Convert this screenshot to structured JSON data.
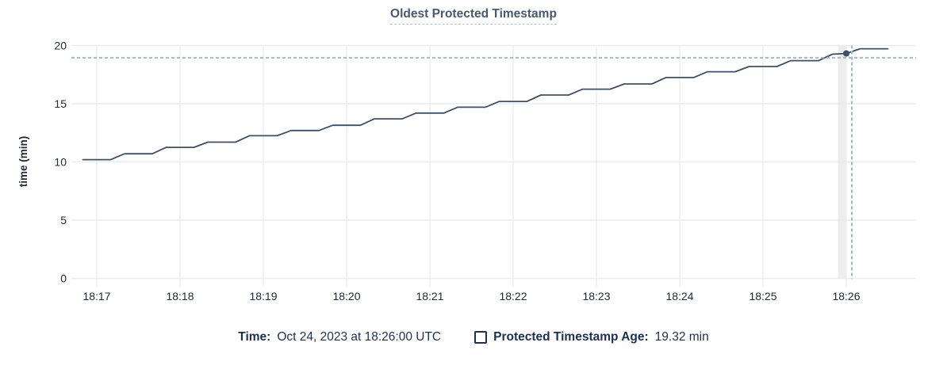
{
  "title": "Oldest Protected Timestamp",
  "legend": {
    "time_label": "Time:",
    "time_value": "Oct 24, 2023 at 18:26:00 UTC",
    "series_label": "Protected Timestamp Age:",
    "series_value": "19.32 min"
  },
  "colors": {
    "title": "#475872",
    "line": "#3f4e6a",
    "legend_text": "#1c2f55",
    "grid": "#ececec",
    "axis_text": "#242a35",
    "crosshair": "#a4b9c5",
    "hover_band": "#ededed",
    "background": "#ffffff"
  },
  "chart_data": {
    "type": "line",
    "title": "Oldest Protected Timestamp",
    "xlabel": "",
    "ylabel": "time (min)",
    "ylim": [
      0,
      20
    ],
    "y_ticks": [
      0,
      5,
      10,
      15,
      20
    ],
    "x_tick_labels": [
      "18:17",
      "18:18",
      "18:19",
      "18:20",
      "18:21",
      "18:22",
      "18:23",
      "18:24",
      "18:25",
      "18:26"
    ],
    "x_tick_interval_seconds": 60,
    "grid": true,
    "legend_position": "bottom",
    "series": [
      {
        "name": "Protected Timestamp Age",
        "unit": "min",
        "style": "stepped-line",
        "points_offset_seconds_vs_18_17": [
          [
            -10,
            10.2
          ],
          [
            0,
            10.2
          ],
          [
            10,
            10.2
          ],
          [
            20,
            10.7
          ],
          [
            30,
            10.7
          ],
          [
            40,
            10.7
          ],
          [
            50,
            11.25
          ],
          [
            60,
            11.25
          ],
          [
            70,
            11.25
          ],
          [
            80,
            11.7
          ],
          [
            90,
            11.7
          ],
          [
            100,
            11.7
          ],
          [
            110,
            12.25
          ],
          [
            120,
            12.25
          ],
          [
            130,
            12.25
          ],
          [
            140,
            12.7
          ],
          [
            150,
            12.7
          ],
          [
            160,
            12.7
          ],
          [
            170,
            13.15
          ],
          [
            180,
            13.15
          ],
          [
            190,
            13.15
          ],
          [
            200,
            13.7
          ],
          [
            210,
            13.7
          ],
          [
            220,
            13.7
          ],
          [
            230,
            14.2
          ],
          [
            240,
            14.2
          ],
          [
            250,
            14.2
          ],
          [
            260,
            14.7
          ],
          [
            270,
            14.7
          ],
          [
            280,
            14.7
          ],
          [
            290,
            15.2
          ],
          [
            300,
            15.2
          ],
          [
            310,
            15.2
          ],
          [
            320,
            15.75
          ],
          [
            330,
            15.75
          ],
          [
            340,
            15.75
          ],
          [
            350,
            16.25
          ],
          [
            360,
            16.25
          ],
          [
            370,
            16.25
          ],
          [
            380,
            16.7
          ],
          [
            390,
            16.7
          ],
          [
            400,
            16.7
          ],
          [
            410,
            17.25
          ],
          [
            420,
            17.25
          ],
          [
            430,
            17.25
          ],
          [
            440,
            17.75
          ],
          [
            450,
            17.75
          ],
          [
            460,
            17.75
          ],
          [
            470,
            18.2
          ],
          [
            480,
            18.2
          ],
          [
            490,
            18.2
          ],
          [
            500,
            18.7
          ],
          [
            510,
            18.7
          ],
          [
            520,
            18.7
          ],
          [
            530,
            19.25
          ],
          [
            540,
            19.32
          ],
          [
            550,
            19.72
          ],
          [
            560,
            19.72
          ],
          [
            570,
            19.72
          ]
        ]
      }
    ],
    "hover": {
      "time": "18:26:00",
      "point_offset_seconds": 540,
      "point_value_min": 19.32,
      "crosshair_x_offset_seconds": 544,
      "crosshair_y_value_min": 18.95
    }
  }
}
